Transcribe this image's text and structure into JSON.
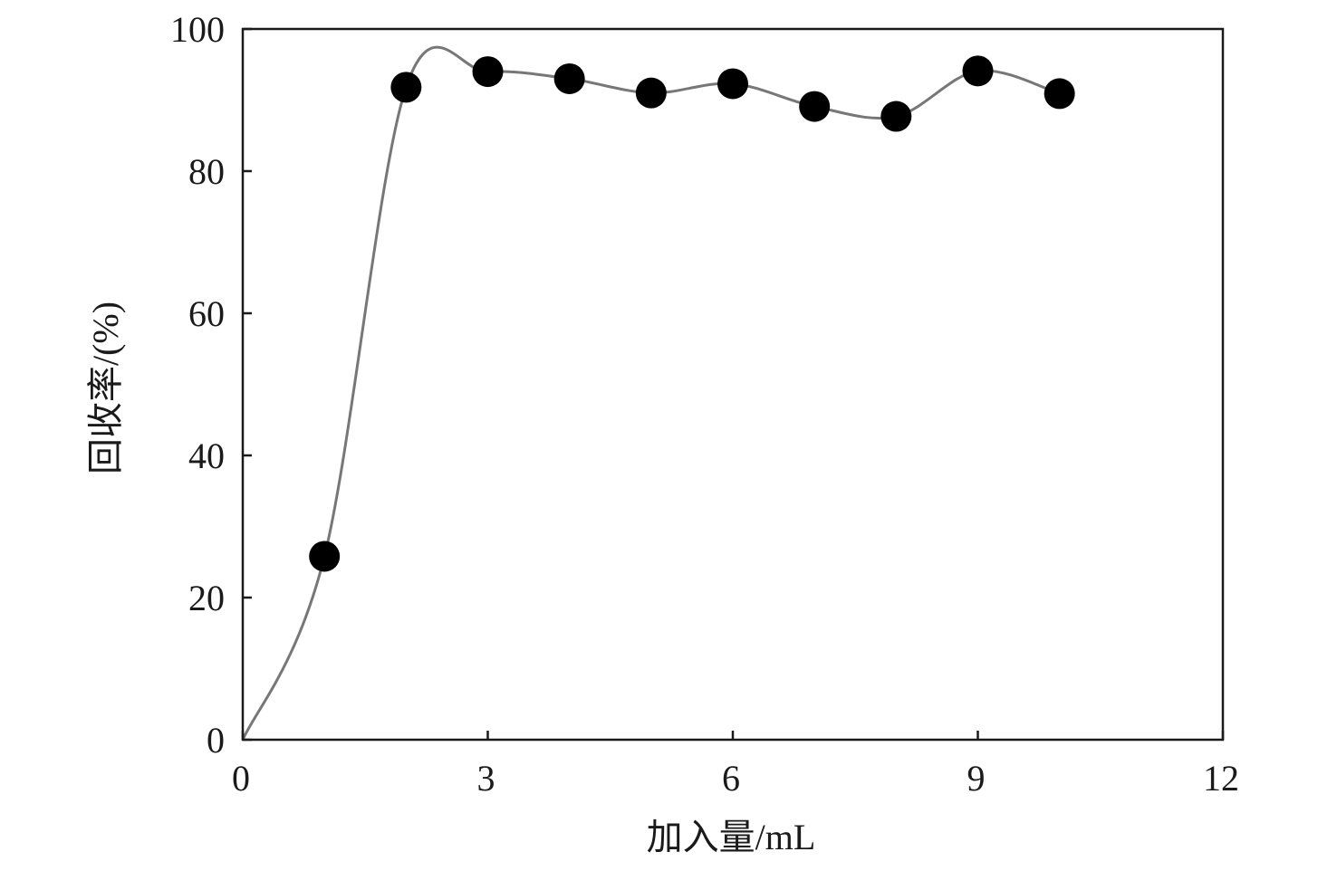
{
  "chart_data": {
    "type": "line",
    "title": "",
    "xlabel": "加入量/mL",
    "ylabel": "回收率/(%)",
    "xlim": [
      0,
      12
    ],
    "ylim": [
      0,
      100
    ],
    "xticks": [
      0,
      3,
      6,
      9,
      12
    ],
    "yticks": [
      0,
      20,
      40,
      60,
      80,
      100
    ],
    "grid": false,
    "legend": "none",
    "series": [
      {
        "x": [
          1,
          2,
          3,
          4,
          5,
          6,
          7,
          8,
          9,
          10
        ],
        "values": [
          25.8,
          91.8,
          94.0,
          93.0,
          91.0,
          92.3,
          89.1,
          87.7,
          94.1,
          90.9
        ],
        "curve_origin": [
          0,
          0
        ],
        "marker": "filled-circle",
        "line_color": "#777777",
        "marker_color": "#000000"
      }
    ]
  }
}
